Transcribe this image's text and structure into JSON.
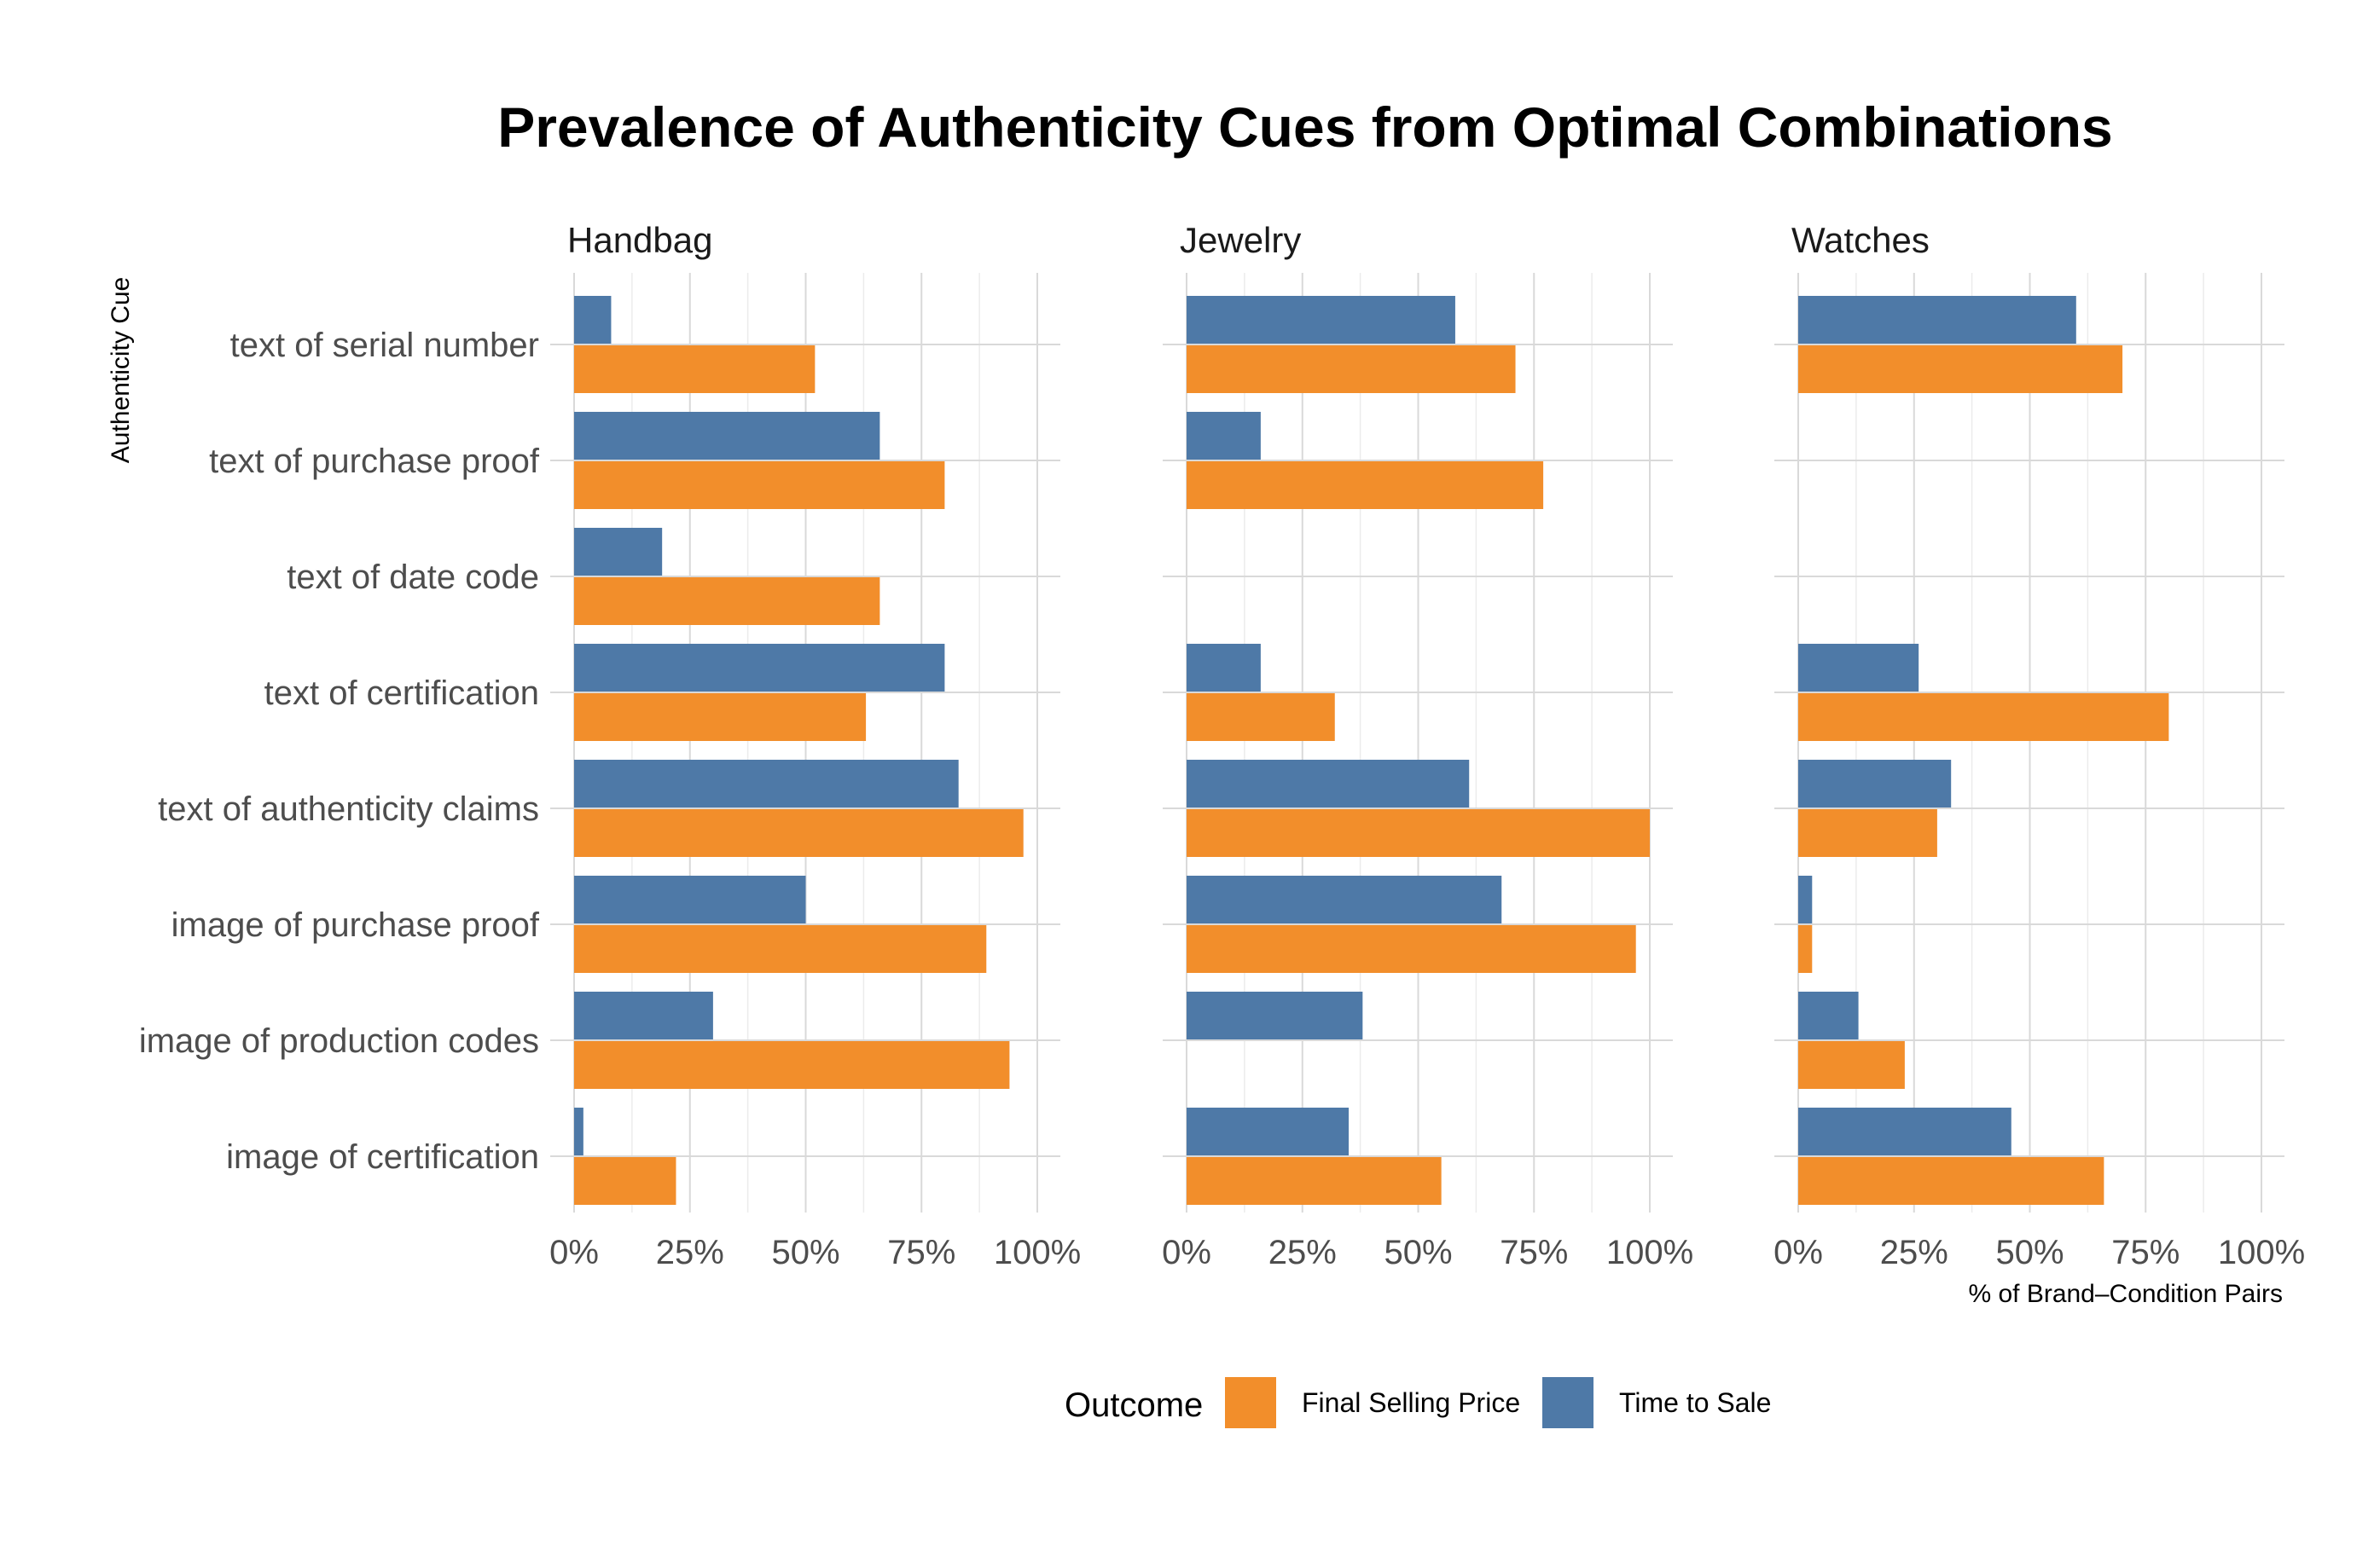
{
  "chart_data": {
    "type": "bar",
    "orientation": "horizontal",
    "title": "Prevalence of Authenticity Cues from Optimal Combinations",
    "xlabel": "% of Brand–Condition Pairs",
    "ylabel": "Authenticity Cue",
    "xlim": [
      0,
      100
    ],
    "x_ticks": [
      "0%",
      "25%",
      "50%",
      "75%",
      "100%"
    ],
    "grid": true,
    "legend": {
      "title": "Outcome",
      "position": "bottom",
      "entries": [
        {
          "name": "Final Selling Price",
          "color": "#f28e2b"
        },
        {
          "name": "Time to Sale",
          "color": "#4e79a7"
        }
      ]
    },
    "categories": [
      "text of serial number",
      "text of purchase proof",
      "text of date code",
      "text of certification",
      "text of authenticity claims",
      "image of purchase proof",
      "image of production codes",
      "image of certification"
    ],
    "panels": [
      {
        "name": "Handbag",
        "series": [
          {
            "name": "Time to Sale",
            "values": [
              8,
              66,
              19,
              80,
              83,
              50,
              30,
              2
            ]
          },
          {
            "name": "Final Selling Price",
            "values": [
              52,
              80,
              66,
              63,
              97,
              89,
              94,
              22
            ]
          }
        ]
      },
      {
        "name": "Jewelry",
        "series": [
          {
            "name": "Time to Sale",
            "values": [
              58,
              16,
              null,
              16,
              61,
              68,
              38,
              35
            ]
          },
          {
            "name": "Final Selling Price",
            "values": [
              71,
              77,
              null,
              32,
              100,
              97,
              null,
              55
            ]
          }
        ]
      },
      {
        "name": "Watches",
        "series": [
          {
            "name": "Time to Sale",
            "values": [
              60,
              null,
              null,
              26,
              33,
              3,
              13,
              46
            ]
          },
          {
            "name": "Final Selling Price",
            "values": [
              70,
              null,
              null,
              80,
              30,
              3,
              23,
              66
            ]
          }
        ]
      }
    ]
  }
}
